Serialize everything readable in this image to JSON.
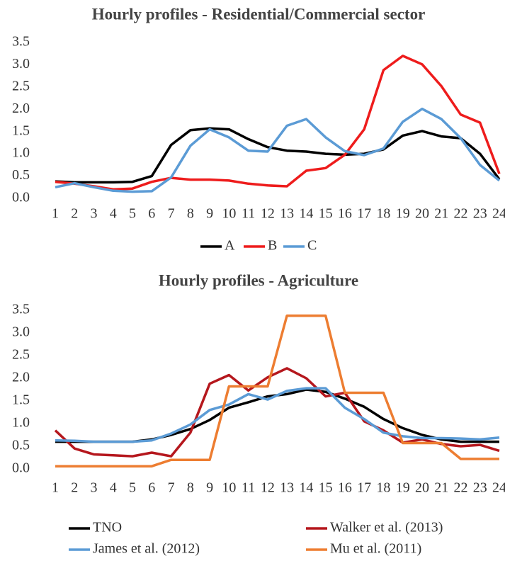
{
  "chart_data": [
    {
      "type": "line",
      "title": "Hourly profiles - Residential/Commercial sector",
      "categories": [
        "1",
        "2",
        "3",
        "4",
        "5",
        "6",
        "7",
        "8",
        "9",
        "10",
        "11",
        "12",
        "13",
        "14",
        "15",
        "16",
        "17",
        "18",
        "19",
        "20",
        "21",
        "22",
        "23",
        "24"
      ],
      "ylim": [
        0,
        3.5
      ],
      "yticks": [
        {
          "value": 0,
          "label": "0.0"
        },
        0.5,
        {
          "value": 1,
          "label": "1.0"
        },
        1.5,
        {
          "value": 2,
          "label": "2.0"
        },
        2.5,
        {
          "value": 3,
          "label": "3.0"
        },
        3.5
      ],
      "legend": "bottom",
      "series": [
        {
          "name": "A",
          "color": "#000000",
          "values": [
            0.38,
            0.36,
            0.36,
            0.36,
            0.37,
            0.5,
            1.2,
            1.53,
            1.57,
            1.55,
            1.33,
            1.15,
            1.07,
            1.05,
            1.0,
            0.98,
            1.0,
            1.1,
            1.41,
            1.51,
            1.39,
            1.35,
            1.0,
            0.43
          ]
        },
        {
          "name": "B",
          "color": "#ee1c1c",
          "values": [
            0.37,
            0.33,
            0.27,
            0.2,
            0.22,
            0.37,
            0.46,
            0.42,
            0.42,
            0.4,
            0.33,
            0.29,
            0.27,
            0.62,
            0.68,
            0.98,
            1.55,
            2.88,
            3.2,
            3.01,
            2.52,
            1.88,
            1.7,
            0.55
          ]
        },
        {
          "name": "C",
          "color": "#5b9bd5",
          "values": [
            0.25,
            0.34,
            0.25,
            0.17,
            0.15,
            0.16,
            0.47,
            1.18,
            1.55,
            1.37,
            1.07,
            1.05,
            1.63,
            1.78,
            1.37,
            1.06,
            0.97,
            1.12,
            1.72,
            2.01,
            1.78,
            1.35,
            0.75,
            0.4
          ]
        }
      ]
    },
    {
      "type": "line",
      "title": "Hourly profiles - Agriculture",
      "categories": [
        "1",
        "2",
        "3",
        "4",
        "5",
        "6",
        "7",
        "8",
        "9",
        "10",
        "11",
        "12",
        "13",
        "14",
        "15",
        "16",
        "17",
        "18",
        "19",
        "20",
        "21",
        "22",
        "23",
        "24"
      ],
      "ylim": [
        0,
        3.5
      ],
      "yticks": [
        {
          "value": 0,
          "label": "0.0"
        },
        0.5,
        {
          "value": 1,
          "label": "1.0"
        },
        1.5,
        {
          "value": 2,
          "label": "2.0"
        },
        2.5,
        {
          "value": 3,
          "label": "3.0"
        },
        3.5
      ],
      "legend": "bottom",
      "series": [
        {
          "name": "TNO",
          "color": "#000000",
          "values": [
            0.6,
            0.6,
            0.6,
            0.6,
            0.6,
            0.65,
            0.75,
            0.88,
            1.08,
            1.35,
            1.47,
            1.6,
            1.65,
            1.75,
            1.7,
            1.55,
            1.37,
            1.1,
            0.9,
            0.75,
            0.65,
            0.6,
            0.6,
            0.6
          ]
        },
        {
          "name": "Walker et al. (2013)",
          "color": "#b5171d",
          "values": [
            0.85,
            0.45,
            0.32,
            0.3,
            0.28,
            0.36,
            0.28,
            0.8,
            1.88,
            2.07,
            1.73,
            2.02,
            2.22,
            2.0,
            1.6,
            1.68,
            1.05,
            0.85,
            0.58,
            0.65,
            0.55,
            0.5,
            0.53,
            0.4
          ]
        },
        {
          "name": "James et al. (2012)",
          "color": "#5b9bd5",
          "values": [
            0.63,
            0.62,
            0.6,
            0.6,
            0.6,
            0.63,
            0.78,
            0.98,
            1.3,
            1.42,
            1.65,
            1.53,
            1.72,
            1.78,
            1.78,
            1.35,
            1.1,
            0.8,
            0.72,
            0.68,
            0.68,
            0.67,
            0.65,
            0.69
          ]
        },
        {
          "name": "Mu et al. (2011)",
          "color": "#ed7d31",
          "values": [
            0.06,
            0.06,
            0.06,
            0.06,
            0.06,
            0.06,
            0.2,
            0.2,
            0.2,
            1.82,
            1.82,
            1.82,
            3.38,
            3.38,
            3.38,
            1.68,
            1.68,
            1.68,
            0.57,
            0.57,
            0.57,
            0.22,
            0.22,
            0.22
          ]
        }
      ]
    }
  ]
}
